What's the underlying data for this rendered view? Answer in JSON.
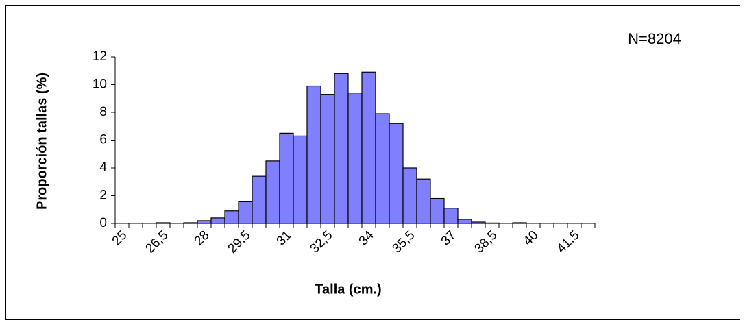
{
  "chart_data": {
    "type": "bar",
    "annotation": "N=8204",
    "x_label": "Talla (cm.)",
    "y_label": "Proporción tallas (%)",
    "categories": [
      "25",
      null,
      null,
      "26,5",
      null,
      null,
      "28",
      null,
      null,
      "29,5",
      null,
      null,
      "31",
      null,
      null,
      "32,5",
      null,
      null,
      "34",
      null,
      null,
      "35,5",
      null,
      null,
      "37",
      null,
      null,
      "38,5",
      null,
      null,
      "40",
      null,
      null,
      "41,5",
      null
    ],
    "values": [
      0,
      0,
      0,
      0.05,
      0,
      0.05,
      0.2,
      0.4,
      0.9,
      1.6,
      3.4,
      4.5,
      6.5,
      6.3,
      9.9,
      9.3,
      10.8,
      9.4,
      10.9,
      7.9,
      7.2,
      4.0,
      3.2,
      1.8,
      1.1,
      0.3,
      0.1,
      0.03,
      0,
      0.05,
      0,
      0,
      0,
      0,
      0
    ],
    "color": "#8080ff",
    "ylim": [
      0,
      12
    ],
    "yticks": [
      0,
      2,
      4,
      6,
      8,
      10,
      12
    ]
  }
}
